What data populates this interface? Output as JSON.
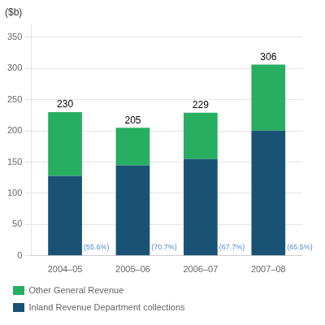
{
  "chart_data": {
    "type": "bar",
    "stacked": true,
    "ylabel": "($b)",
    "categories": [
      "2004–05",
      "2005–06",
      "2006–07",
      "2007–08"
    ],
    "series": [
      {
        "name": "Inland Revenue Department collections",
        "color": "#1a5276",
        "values": [
          127.88,
          144.935,
          154.933,
          200.43
        ]
      },
      {
        "name": "Other General Revenue",
        "color": "#27ae60",
        "values": [
          102.12,
          60.065,
          74.067,
          105.57
        ]
      }
    ],
    "totals": [
      230,
      205,
      229,
      306
    ],
    "share_labels": [
      {
        "value": 55.6,
        "label": "(55.6%)"
      },
      {
        "value": 70.7,
        "label": "(70.7%)"
      },
      {
        "value": 67.7,
        "label": "(67.7%)"
      },
      {
        "value": 65.5,
        "label": "(65.5%)"
      }
    ],
    "ylim": [
      0,
      370
    ],
    "yticks": [
      0,
      50,
      100,
      150,
      200,
      250,
      300,
      350
    ],
    "grid": true,
    "legend": "lower left"
  }
}
